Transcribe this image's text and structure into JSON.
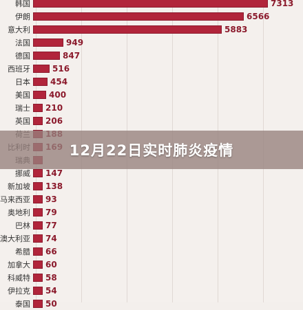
{
  "banner": {
    "title": "12月22日实时肺炎疫情"
  },
  "chart_data": {
    "type": "bar",
    "orientation": "horizontal",
    "categories": [
      "韩国",
      "伊朗",
      "意大利",
      "法国",
      "德国",
      "西班牙",
      "日本",
      "美国",
      "瑞士",
      "英国",
      "荷兰",
      "比利时",
      "瑞典",
      "挪威",
      "新加坡",
      "马来西亚",
      "奥地利",
      "巴林",
      "澳大利亚",
      "希腊",
      "加拿大",
      "科威特",
      "伊拉克",
      "泰国"
    ],
    "values": [
      7313,
      6566,
      5883,
      949,
      847,
      516,
      454,
      400,
      210,
      206,
      188,
      169,
      161,
      147,
      138,
      93,
      79,
      77,
      74,
      66,
      60,
      58,
      54,
      50
    ],
    "value_labels": [
      "7313",
      "6566",
      "5883",
      "949",
      "847",
      "516",
      "454",
      "400",
      "210",
      "206",
      "188",
      "169",
      "",
      "147",
      "138",
      "93",
      "79",
      "77",
      "74",
      "66",
      "60",
      "58",
      "54",
      "50"
    ],
    "bar_color": "#b1253b",
    "label_color": "#8b1a2c"
  }
}
